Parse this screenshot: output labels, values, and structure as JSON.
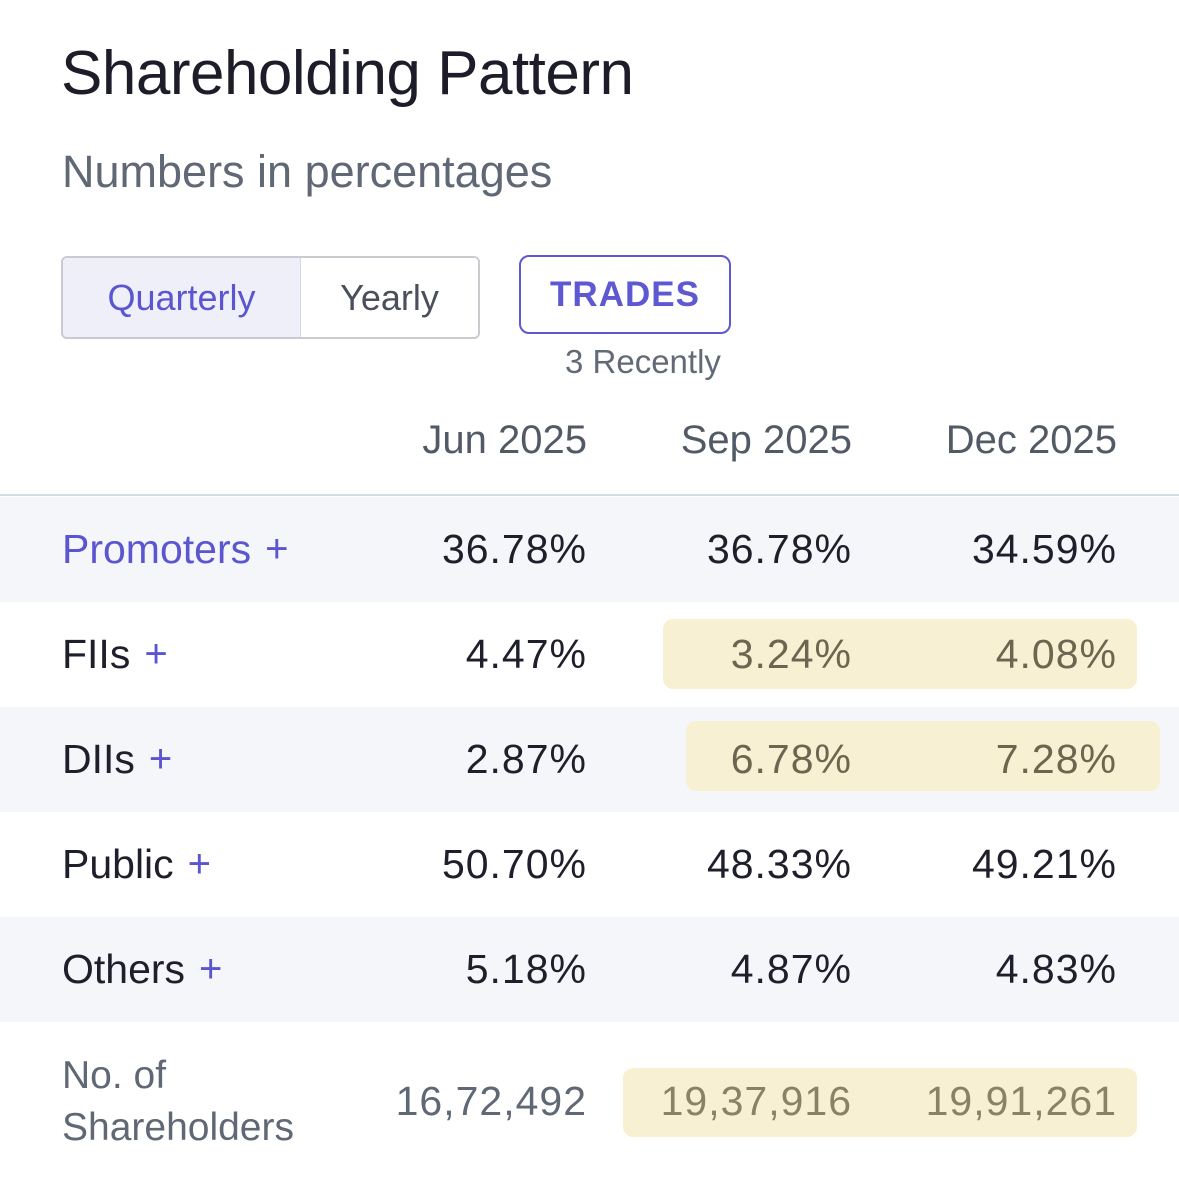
{
  "title": "Shareholding Pattern",
  "subtitle": "Numbers in percentages",
  "toggle": {
    "quarterly_label": "Quarterly",
    "yearly_label": "Yearly",
    "selected": "Quarterly"
  },
  "trades": {
    "label": "TRADES",
    "note": "3 Recently"
  },
  "columns": [
    "Jun 2025",
    "Sep 2025",
    "Dec 2025"
  ],
  "rows": [
    {
      "label": "Promoters",
      "plus": "+",
      "values": [
        "36.78%",
        "36.78%",
        "34.59%"
      ]
    },
    {
      "label": "FIIs",
      "plus": "+",
      "values": [
        "4.47%",
        "3.24%",
        "4.08%"
      ]
    },
    {
      "label": "DIIs",
      "plus": "+",
      "values": [
        "2.87%",
        "6.78%",
        "7.28%"
      ]
    },
    {
      "label": "Public",
      "plus": "+",
      "values": [
        "50.70%",
        "48.33%",
        "49.21%"
      ]
    },
    {
      "label": "Others",
      "plus": "+",
      "values": [
        "5.18%",
        "4.87%",
        "4.83%"
      ]
    }
  ],
  "shareholders": {
    "label_line1": "No. of",
    "label_line2": "Shareholders",
    "values": [
      "16,72,492",
      "19,37,916",
      "19,91,261"
    ]
  },
  "colors": {
    "accent": "#5b55cf",
    "highlight": "#f8f0d3",
    "row_shade": "#f5f6fa"
  }
}
